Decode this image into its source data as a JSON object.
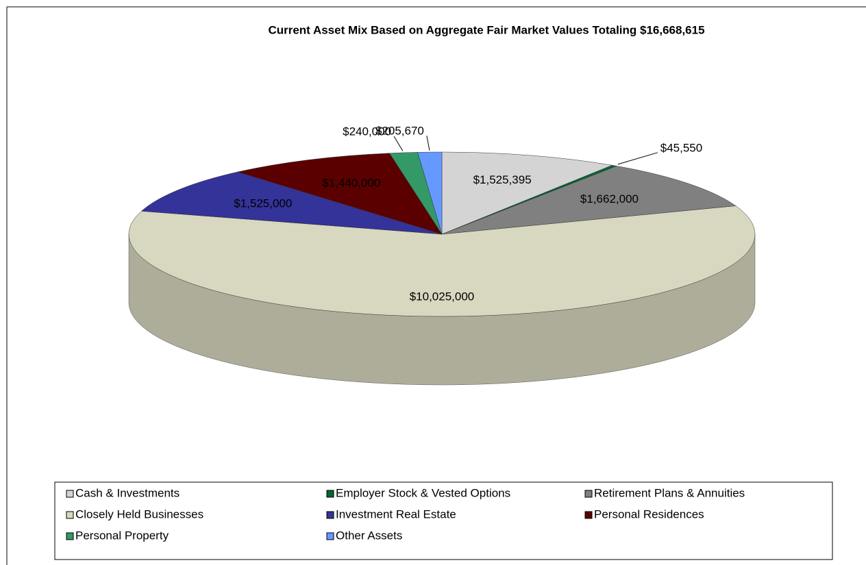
{
  "chart_data": {
    "type": "pie",
    "title": "Current Asset Mix Based on Aggregate Fair Market Values Totaling $16,668,615",
    "categories": [
      "Cash & Investments",
      "Employer Stock & Vested Options",
      "Retirement Plans & Annuities",
      "Closely Held Businesses",
      "Investment Real Estate",
      "Personal Residences",
      "Personal Property",
      "Other Assets"
    ],
    "values": [
      1525395,
      45550,
      1662000,
      10025000,
      1525000,
      1440000,
      240000,
      205670
    ],
    "value_labels": [
      "$1,525,395",
      "$45,550",
      "$1,662,000",
      "$10,025,000",
      "$1,525,000",
      "$1,440,000",
      "$240,000",
      "$205,670"
    ],
    "colors": [
      "#d4d4d4",
      "#006633",
      "#808080",
      "#d8d8c0",
      "#333399",
      "#5a0000",
      "#339966",
      "#6699ff"
    ],
    "legend": "bottom"
  }
}
